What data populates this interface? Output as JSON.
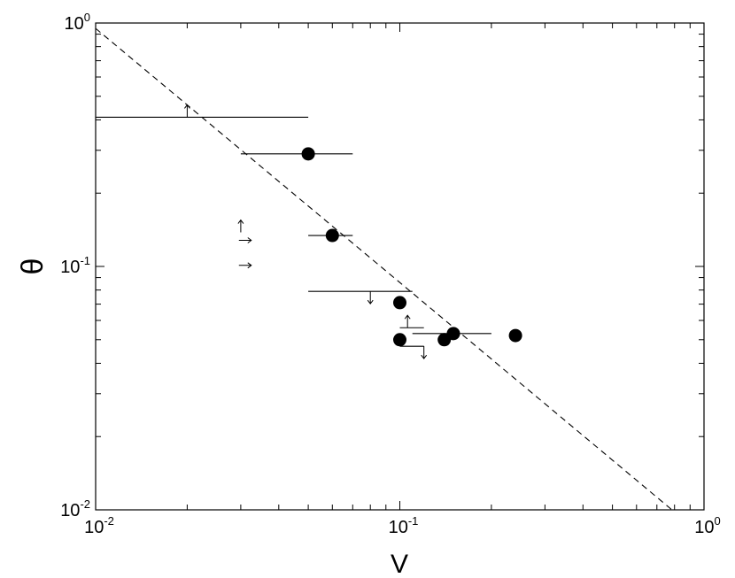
{
  "chart_data": {
    "type": "scatter",
    "title": "",
    "xlabel": "V",
    "ylabel": "θ",
    "xscale": "log",
    "yscale": "log",
    "xlim": [
      0.01,
      1
    ],
    "ylim": [
      0.01,
      1
    ],
    "grid": false,
    "legend": "none",
    "x_ticks": [
      {
        "value": 0.01,
        "base": "10",
        "exp": "-2"
      },
      {
        "value": 0.1,
        "base": "10",
        "exp": "-1"
      },
      {
        "value": 1,
        "base": "10",
        "exp": "0"
      }
    ],
    "y_ticks": [
      {
        "value": 0.01,
        "base": "10",
        "exp": "-2"
      },
      {
        "value": 0.1,
        "base": "10",
        "exp": "-1"
      },
      {
        "value": 1,
        "base": "10",
        "exp": "0"
      }
    ],
    "points": [
      {
        "x": 0.05,
        "y": 0.29,
        "xerr": [
          0.03,
          0.07
        ]
      },
      {
        "x": 0.06,
        "y": 0.134,
        "xerr": [
          0.05,
          0.07
        ]
      },
      {
        "x": 0.1,
        "y": 0.071
      },
      {
        "x": 0.1,
        "y": 0.05
      },
      {
        "x": 0.14,
        "y": 0.05
      },
      {
        "x": 0.15,
        "y": 0.053
      },
      {
        "x": 0.24,
        "y": 0.052
      }
    ],
    "range_bars": [
      {
        "x1": 0.01,
        "x2": 0.05,
        "y": 0.41
      },
      {
        "x1": 0.05,
        "x2": 0.11,
        "y": 0.079
      },
      {
        "x1": 0.1,
        "x2": 0.12,
        "y": 0.056
      },
      {
        "x1": 0.11,
        "x2": 0.2,
        "y": 0.053
      },
      {
        "x1": 0.1,
        "x2": 0.12,
        "y": 0.047
      }
    ],
    "arrows": [
      {
        "x": 0.02,
        "y": 0.41,
        "dir": "up"
      },
      {
        "x": 0.08,
        "y": 0.079,
        "dir": "down"
      },
      {
        "x": 0.106,
        "y": 0.056,
        "dir": "up"
      },
      {
        "x": 0.12,
        "y": 0.047,
        "dir": "down"
      },
      {
        "x": 0.03,
        "y": 0.138,
        "dir": "up"
      },
      {
        "x": 0.031,
        "y": 0.128,
        "dir": "right"
      },
      {
        "x": 0.031,
        "y": 0.101,
        "dir": "right"
      }
    ],
    "fit_line": {
      "x1": 0.01,
      "y1": 0.95,
      "x2": 0.8,
      "y2": 0.0098,
      "style": "dashed"
    }
  }
}
